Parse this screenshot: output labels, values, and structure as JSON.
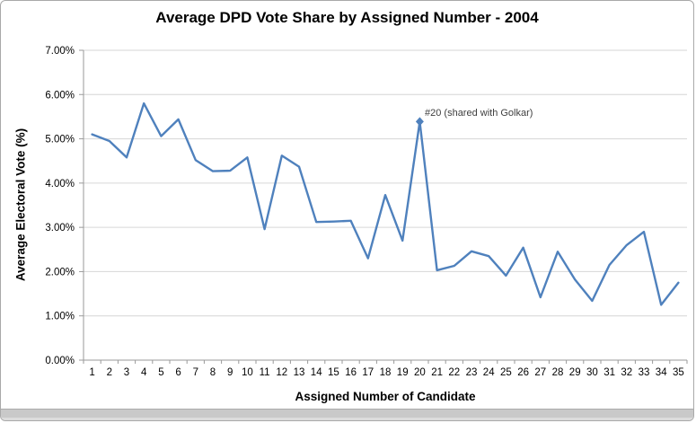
{
  "chart_data": {
    "type": "line",
    "title": "Average DPD Vote Share by Assigned Number - 2004",
    "xlabel": "Assigned Number of Candidate",
    "ylabel": "Average Electoral Vote (%)",
    "categories": [
      1,
      2,
      3,
      4,
      5,
      6,
      7,
      8,
      9,
      10,
      11,
      12,
      13,
      14,
      15,
      16,
      17,
      18,
      19,
      20,
      21,
      22,
      23,
      24,
      25,
      26,
      27,
      28,
      29,
      30,
      31,
      32,
      33,
      34,
      35
    ],
    "values": [
      5.1,
      4.95,
      4.58,
      5.8,
      5.06,
      5.44,
      4.52,
      4.27,
      4.28,
      4.58,
      2.96,
      4.62,
      4.37,
      3.12,
      3.13,
      3.15,
      2.3,
      3.73,
      2.7,
      5.39,
      2.03,
      2.13,
      2.46,
      2.35,
      1.91,
      2.54,
      1.42,
      2.45,
      1.82,
      1.34,
      2.15,
      2.6,
      2.9,
      1.25,
      1.75
    ],
    "ylim": [
      0,
      7
    ],
    "ytick_labels": [
      "0.00%",
      "1.00%",
      "2.00%",
      "3.00%",
      "4.00%",
      "5.00%",
      "6.00%",
      "7.00%"
    ],
    "grid": "horizontal",
    "legend": "none",
    "annotation": {
      "text": "#20 (shared with Golkar)",
      "category": 20,
      "value": 5.39,
      "marker": "diamond"
    },
    "colors": {
      "series": "#4F81BD",
      "gridline": "#D6D6D6",
      "axis": "#9A9A9A",
      "tick_label": "#000000",
      "annotation_text": "#3E3E3E"
    }
  }
}
